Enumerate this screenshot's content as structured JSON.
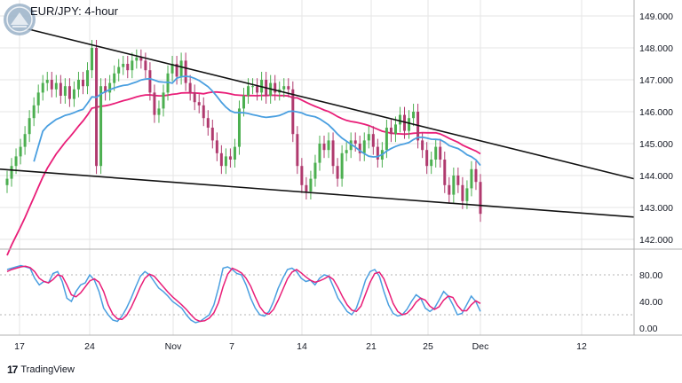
{
  "header": {
    "title": "EUR/JPY: 4-hour"
  },
  "footer": {
    "brand": "TradingView",
    "brand_icon": "tradingview-logo-icon"
  },
  "colors": {
    "bull": "#26a69a",
    "bull_body": "#4caf50",
    "bear": "#b03a6e",
    "sma_short": "#4a9fe0",
    "sma_long": "#e91e78",
    "stoch_k": "#4a9fe0",
    "stoch_d": "#e91e78",
    "trendline": "#111111",
    "grid": "#e6e6e6",
    "axis_text": "#131722"
  },
  "chart_data": [
    {
      "type": "candlestick",
      "title": "EUR/JPY: 4-hour",
      "x_ticks": [
        "17",
        "24",
        "Nov",
        "7",
        "14",
        "21",
        "25",
        "Dec",
        "12"
      ],
      "y_ticks": [
        "149.000",
        "148.000",
        "147.000",
        "146.000",
        "145.000",
        "144.000",
        "143.000",
        "142.000"
      ],
      "ylim": [
        141.6,
        149.3
      ],
      "close": [
        143.9,
        144.3,
        144.6,
        144.9,
        145.3,
        145.8,
        146.2,
        146.6,
        146.9,
        147.0,
        146.7,
        146.9,
        146.5,
        146.8,
        146.4,
        146.7,
        147.0,
        146.8,
        147.3,
        148.0,
        144.3,
        146.8,
        146.6,
        146.9,
        147.2,
        147.4,
        147.5,
        147.3,
        147.6,
        147.7,
        147.6,
        147.3,
        146.6,
        145.9,
        146.1,
        146.6,
        147.2,
        147.5,
        147.1,
        147.6,
        146.9,
        146.6,
        146.3,
        146.2,
        145.8,
        145.5,
        145.1,
        144.7,
        144.3,
        144.6,
        144.5,
        144.9,
        146.1,
        146.5,
        146.8,
        146.8,
        146.6,
        147.0,
        146.5,
        146.9,
        146.6,
        146.7,
        146.8,
        146.7,
        145.3,
        144.3,
        143.7,
        143.5,
        143.9,
        144.4,
        145.0,
        144.8,
        145.1,
        144.3,
        143.9,
        144.7,
        144.8,
        145.1,
        145.0,
        144.7,
        145.1,
        145.3,
        144.9,
        144.5,
        144.8,
        145.5,
        145.3,
        145.6,
        145.9,
        145.4,
        145.8,
        146.0,
        145.1,
        144.8,
        144.3,
        144.5,
        144.9,
        144.5,
        143.7,
        143.4,
        144.0,
        143.7,
        143.2,
        143.6,
        144.2,
        143.8,
        142.8
      ],
      "series": [
        {
          "name": "",
          "style": "line",
          "color_key": "sma_short"
        },
        {
          "name": "",
          "style": "line",
          "color_key": "sma_long"
        }
      ],
      "trendlines": [
        {
          "from": [
            "17",
            148.6
          ],
          "to": [
            "12+",
            143.9
          ]
        },
        {
          "from": [
            "17",
            144.2
          ],
          "to": [
            "12+",
            142.7
          ]
        }
      ]
    },
    {
      "type": "line",
      "title": "",
      "y_ticks": [
        "80.00",
        "40.00",
        "0.00"
      ],
      "ylim": [
        0,
        100
      ],
      "reference_lines": [
        80,
        20
      ],
      "series": [
        {
          "name": "",
          "color_key": "stoch_k",
          "values": [
            88,
            90,
            92,
            94,
            92,
            90,
            75,
            65,
            70,
            68,
            82,
            85,
            70,
            45,
            40,
            55,
            65,
            68,
            80,
            72,
            55,
            30,
            20,
            12,
            10,
            18,
            30,
            45,
            62,
            78,
            85,
            80,
            70,
            60,
            55,
            48,
            40,
            35,
            30,
            20,
            12,
            8,
            10,
            15,
            20,
            35,
            60,
            90,
            92,
            88,
            82,
            80,
            65,
            45,
            30,
            20,
            18,
            25,
            40,
            60,
            75,
            88,
            90,
            85,
            75,
            70,
            72,
            65,
            75,
            80,
            78,
            62,
            45,
            35,
            25,
            20,
            30,
            50,
            72,
            85,
            88,
            78,
            55,
            35,
            22,
            18,
            20,
            28,
            40,
            50,
            45,
            30,
            25,
            30,
            42,
            55,
            48,
            35,
            20,
            22,
            35,
            48,
            40,
            25
          ]
        },
        {
          "name": "",
          "color_key": "stoch_d",
          "values": [
            85,
            88,
            90,
            92,
            93,
            91,
            85,
            75,
            70,
            68,
            73,
            80,
            78,
            65,
            50,
            47,
            53,
            62,
            71,
            74,
            69,
            55,
            35,
            21,
            14,
            13,
            19,
            31,
            46,
            62,
            75,
            81,
            78,
            70,
            62,
            54,
            47,
            41,
            35,
            28,
            20,
            13,
            10,
            11,
            15,
            23,
            38,
            62,
            81,
            90,
            87,
            83,
            75,
            63,
            47,
            32,
            23,
            21,
            28,
            42,
            58,
            74,
            84,
            88,
            83,
            77,
            72,
            69,
            71,
            74,
            78,
            73,
            61,
            47,
            35,
            27,
            25,
            33,
            51,
            69,
            82,
            84,
            74,
            56,
            37,
            25,
            20,
            22,
            29,
            39,
            45,
            42,
            33,
            28,
            32,
            42,
            48,
            46,
            34,
            26,
            26,
            35,
            41,
            37
          ]
        }
      ]
    }
  ]
}
